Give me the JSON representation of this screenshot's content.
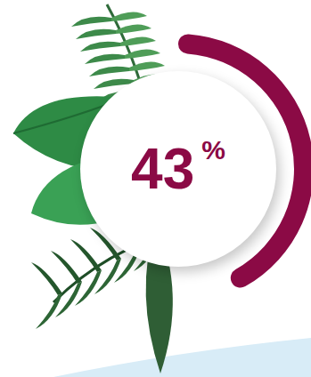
{
  "chart_data": {
    "type": "radial_progress",
    "values": [
      43
    ],
    "value_labels": [
      "43 %"
    ],
    "color": "#8b0a45",
    "ylim": [
      0,
      100
    ]
  }
}
